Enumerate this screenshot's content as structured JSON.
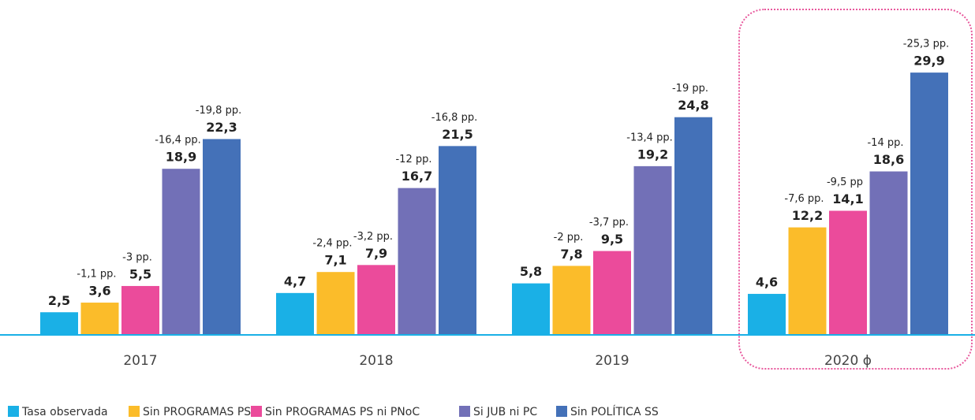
{
  "chart_data": {
    "type": "bar",
    "categories": [
      "2017",
      "2018",
      "2019",
      "2020 ɸ"
    ],
    "ylim": [
      0,
      30
    ],
    "series": [
      {
        "name": "Tasa observada",
        "color": "#1ab0e6",
        "values": [
          2.5,
          4.7,
          5.8,
          4.6
        ],
        "value_labels": [
          "2,5",
          "4,7",
          "5,8",
          "4,6"
        ]
      },
      {
        "name": "Sin PROGRAMAS PS",
        "color": "#fbbc2a",
        "values": [
          3.6,
          7.1,
          7.8,
          12.2
        ],
        "value_labels": [
          "3,6",
          "7,1",
          "7,8",
          "12,2"
        ],
        "annotations": [
          "-1,1 pp.",
          "-2,4 pp.",
          "-2 pp.",
          "-7,6 pp."
        ]
      },
      {
        "name": "Sin PROGRAMAS PS ni PNoC",
        "color": "#eb4b9b",
        "values": [
          5.5,
          7.9,
          9.5,
          14.1
        ],
        "value_labels": [
          "5,5",
          "7,9",
          "9,5",
          "14,1"
        ],
        "annotations": [
          "-3 pp.",
          "-3,2 pp.",
          "-3,7 pp.",
          "-9,5 pp"
        ]
      },
      {
        "name": "Si JUB ni PC",
        "color": "#7270b7",
        "values": [
          18.9,
          16.7,
          19.2,
          18.6
        ],
        "value_labels": [
          "18,9",
          "16,7",
          "19,2",
          "18,6"
        ],
        "annotations": [
          "-16,4 pp.",
          "-12 pp.",
          "-13,4 pp.",
          "-14 pp."
        ]
      },
      {
        "name": "Sin POLÍTICA SS",
        "color": "#4471b8",
        "values": [
          22.3,
          21.5,
          24.8,
          29.9
        ],
        "value_labels": [
          "22,3",
          "21,5",
          "24,8",
          "29,9"
        ],
        "annotations": [
          "-19,8 pp.",
          "-16,8 pp.",
          "-19 pp.",
          "-25,3 pp."
        ]
      }
    ]
  }
}
